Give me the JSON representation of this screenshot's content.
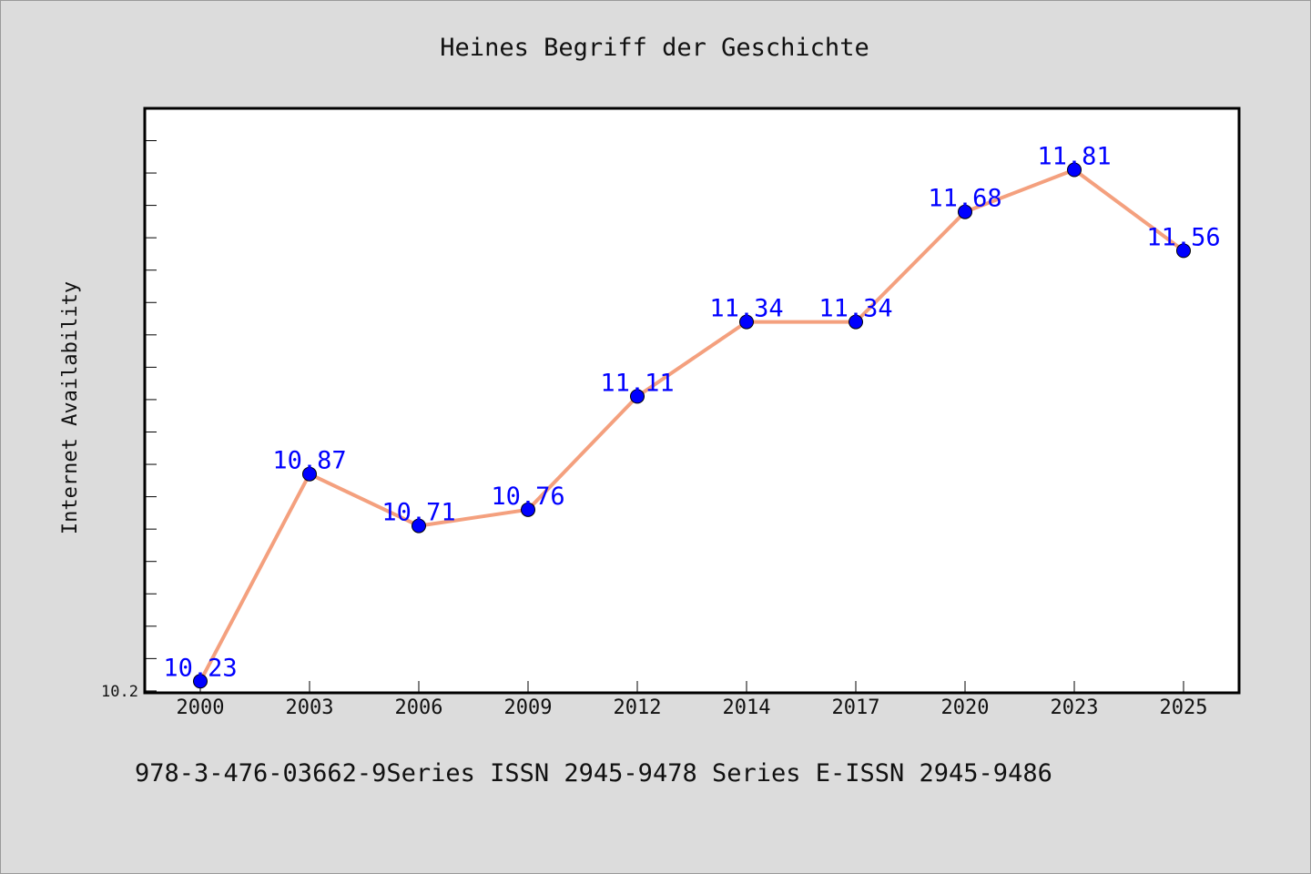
{
  "chart_data": {
    "type": "line",
    "title": "Heines Begriff der Geschichte",
    "xlabel": "",
    "ylabel": "Internet Availability",
    "categories": [
      "2000",
      "2003",
      "2006",
      "2009",
      "2012",
      "2014",
      "2017",
      "2020",
      "2023",
      "2025"
    ],
    "series": [
      {
        "values": [
          10.23,
          10.87,
          10.71,
          10.76,
          11.11,
          11.34,
          11.34,
          11.68,
          11.81,
          11.56
        ],
        "labels": [
          "10.23",
          "10.87",
          "10.71",
          "10.76",
          "11.11",
          "11.34",
          "11.34",
          "11.68",
          "11.81",
          "11.56"
        ]
      }
    ],
    "ytick_labels": [
      "10.2"
    ],
    "ylim": [
      10.197,
      11.997
    ],
    "grid": false,
    "line_color": "#f4a07e",
    "marker_color": "#0000ff",
    "label_color": "#0000ff"
  },
  "footer": {
    "text": "978-3-476-03662-9Series ISSN 2945-9478 Series E-ISSN 2945-9486"
  }
}
